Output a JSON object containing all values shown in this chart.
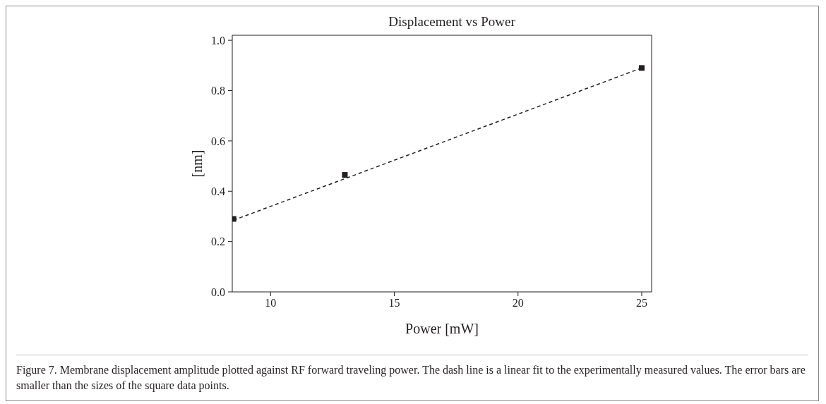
{
  "chart_data": {
    "type": "scatter",
    "title": "Displacement vs Power",
    "xlabel": "Power [mW]",
    "ylabel": "[nm]",
    "marker": "square",
    "grid": false,
    "legend": false,
    "series": [
      {
        "color": "#231f20",
        "x": [
          8.5,
          13,
          25
        ],
        "values": [
          0.29,
          0.465,
          0.89
        ]
      },
      {
        "type": "line",
        "color": "#231f20",
        "line_style": "dashed",
        "marker": "none",
        "x": [
          8.5,
          25
        ],
        "values": [
          0.285,
          0.89
        ]
      }
    ],
    "xlim": [
      8.45,
      25.4
    ],
    "xticks": [
      10,
      15,
      20,
      25
    ],
    "ylim": [
      0,
      1.02
    ],
    "yticks": [
      {
        "value": 0,
        "label": "0.0"
      },
      {
        "value": 0.2,
        "label": "0.2"
      },
      {
        "value": 0.4,
        "label": "0.4"
      },
      {
        "value": 0.6,
        "label": "0.6"
      },
      {
        "value": 0.8,
        "label": "0.8"
      },
      {
        "value": 1,
        "label": "1.0"
      }
    ],
    "annotations": [
      "Figure 7. Membrane displacement amplitude plotted against RF forward traveling power. The dash line is a linear fit to the experimentally measured values. The error bars are smaller than the sizes of the square data points."
    ]
  }
}
